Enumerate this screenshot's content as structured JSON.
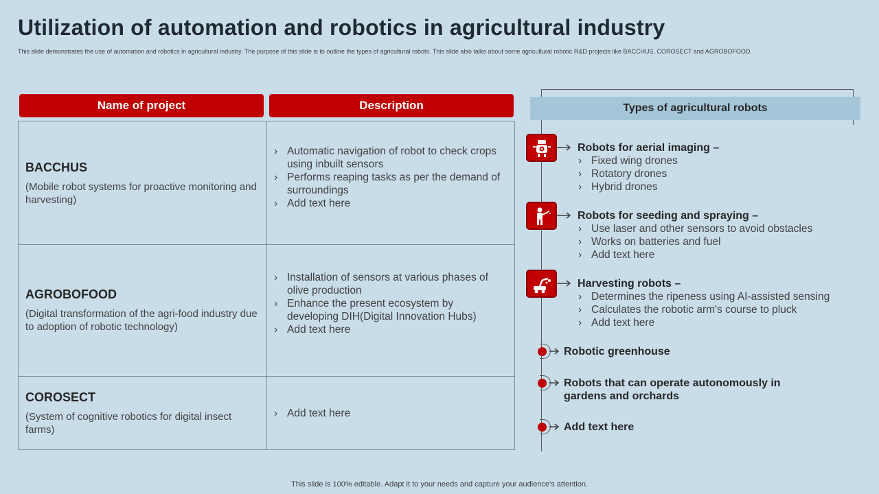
{
  "title": "Utilization of automation and robotics in agricultural industry",
  "subtitle": "This slide demonstrates the use of automation  and robotics in agricultural industry. The purpose of this slide is to outline the types of agricultural robots. This slide also talks about some agricultural robotic R&D projects like BACCHUS,  COROSECT and AGROBOFOOD.",
  "table": {
    "headers": [
      "Name of project",
      "Description"
    ],
    "rows": [
      {
        "name": "BACCHUS",
        "detail": "(Mobile robot systems  for proactive monitoring and harvesting)",
        "points": [
          "Automatic navigation of robot to check crops using inbuilt sensors",
          "Performs reaping tasks as per the demand of surroundings",
          "Add text here"
        ]
      },
      {
        "name": "AGROBOFOOD",
        "detail": "(Digital transformation  of the agri-food industry due to adoption of robotic technology)",
        "points": [
          "Installation  of sensors at various phases of olive production",
          "Enhance the present ecosystem by developing DIH(Digital Innovation  Hubs)",
          "Add text here"
        ]
      },
      {
        "name": "COROSECT",
        "detail": "(System of cognitive robotics for digital insect farms)",
        "points": [
          "Add text here"
        ]
      }
    ]
  },
  "types": {
    "heading": "Types of agricultural robots",
    "icon_items": [
      {
        "icon": "aerial-robot-icon",
        "title": "Robots for aerial imaging –",
        "points": [
          "Fixed wing drones",
          "Rotatory drones",
          "Hybrid drones"
        ]
      },
      {
        "icon": "seeding-robot-icon",
        "title": "Robots for seeding and spraying –",
        "points": [
          "Use laser and other sensors to avoid obstacles",
          "Works on batteries and fuel",
          "Add text here"
        ]
      },
      {
        "icon": "harvesting-robot-icon",
        "title": "Harvesting robots –",
        "points": [
          "Determines the ripeness using AI-assisted sensing",
          "Calculates the robotic arm's course to pluck",
          "Add text here"
        ]
      }
    ],
    "bullet_items": [
      "Robotic greenhouse",
      "Robots that can operate autonomously in gardens and orchards",
      "Add text here"
    ]
  },
  "footer": "This slide is 100% editable. Adapt it to your needs and capture your audience's attention.",
  "colors": {
    "accent": "#c00000",
    "background": "#c9dde9",
    "header_band": "#a5c6d9"
  }
}
